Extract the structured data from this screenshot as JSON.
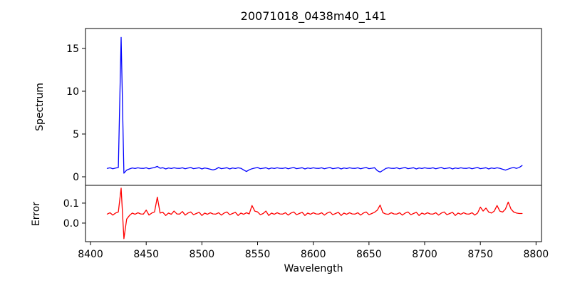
{
  "title": "20071018_0438m40_141",
  "chart_data": {
    "type": "line",
    "title": "20071018_0438m40_141",
    "xlabel": "Wavelength",
    "xlim": [
      8395.5,
      8804.9
    ],
    "x_ticks": [
      8400,
      8450,
      8500,
      8550,
      8600,
      8650,
      8700,
      8750,
      8800
    ],
    "grid": false,
    "legend": "none",
    "panels": [
      {
        "name": "spectrum",
        "ylabel": "Spectrum",
        "color": "#0000ff",
        "ylim": [
          -1.0,
          17.33
        ],
        "yticks": [
          0,
          5,
          10,
          15
        ],
        "ytick_labels": [
          "0",
          "5",
          "10",
          "15"
        ],
        "x_start": 8415,
        "x_step": 2.5,
        "values": [
          0.98,
          1.05,
          0.94,
          1.02,
          1.08,
          16.3,
          0.42,
          0.78,
          0.92,
          1.03,
          0.97,
          1.05,
          0.99,
          0.98,
          1.05,
          0.94,
          1.02,
          1.08,
          1.22,
          1.0,
          1.06,
          0.92,
          1.03,
          0.97,
          1.05,
          0.99,
          0.98,
          1.05,
          0.94,
          1.02,
          1.08,
          0.95,
          1.0,
          1.06,
          0.92,
          1.03,
          0.97,
          0.88,
          0.8,
          0.9,
          1.08,
          0.95,
          1.0,
          1.06,
          0.92,
          1.03,
          0.97,
          1.05,
          0.99,
          0.8,
          0.62,
          0.82,
          0.94,
          1.02,
          1.08,
          0.95,
          1.0,
          1.06,
          0.92,
          1.03,
          0.97,
          1.05,
          0.99,
          0.98,
          1.05,
          0.94,
          1.02,
          1.08,
          0.95,
          1.0,
          1.06,
          0.92,
          1.03,
          0.97,
          1.05,
          0.99,
          0.98,
          1.05,
          0.94,
          1.02,
          1.08,
          0.95,
          1.0,
          1.06,
          0.92,
          1.03,
          0.97,
          1.05,
          0.99,
          0.98,
          1.05,
          0.94,
          1.02,
          1.08,
          0.95,
          1.0,
          1.06,
          0.72,
          0.55,
          0.75,
          0.97,
          1.05,
          0.99,
          0.98,
          1.05,
          0.94,
          1.02,
          1.08,
          0.95,
          1.0,
          1.06,
          0.92,
          1.03,
          0.97,
          1.05,
          0.99,
          0.98,
          1.05,
          0.94,
          1.02,
          1.08,
          0.95,
          1.0,
          1.06,
          0.92,
          1.03,
          0.97,
          1.05,
          0.99,
          0.98,
          1.05,
          0.94,
          1.02,
          1.08,
          0.95,
          1.0,
          1.06,
          0.92,
          1.03,
          0.97,
          1.05,
          0.99,
          0.88,
          0.78,
          0.9,
          1.02,
          1.08,
          0.98,
          1.1,
          1.32
        ]
      },
      {
        "name": "error",
        "ylabel": "Error",
        "color": "#ff0000",
        "ylim": [
          -0.093,
          0.189
        ],
        "yticks": [
          0.0,
          0.1
        ],
        "ytick_labels": [
          "0.0",
          "0.1"
        ],
        "x_start": 8415,
        "x_step": 2.5,
        "values": [
          0.045,
          0.052,
          0.04,
          0.05,
          0.056,
          0.175,
          -0.078,
          0.02,
          0.038,
          0.05,
          0.044,
          0.052,
          0.046,
          0.045,
          0.065,
          0.04,
          0.05,
          0.056,
          0.13,
          0.05,
          0.054,
          0.038,
          0.05,
          0.044,
          0.06,
          0.046,
          0.045,
          0.058,
          0.04,
          0.05,
          0.056,
          0.042,
          0.048,
          0.054,
          0.038,
          0.05,
          0.044,
          0.052,
          0.046,
          0.045,
          0.052,
          0.04,
          0.05,
          0.056,
          0.042,
          0.048,
          0.054,
          0.038,
          0.05,
          0.044,
          0.052,
          0.046,
          0.088,
          0.06,
          0.056,
          0.042,
          0.048,
          0.06,
          0.038,
          0.05,
          0.044,
          0.052,
          0.046,
          0.045,
          0.052,
          0.04,
          0.05,
          0.056,
          0.042,
          0.048,
          0.054,
          0.038,
          0.05,
          0.044,
          0.052,
          0.046,
          0.045,
          0.052,
          0.04,
          0.05,
          0.056,
          0.042,
          0.048,
          0.054,
          0.038,
          0.05,
          0.044,
          0.052,
          0.046,
          0.045,
          0.052,
          0.04,
          0.05,
          0.056,
          0.042,
          0.048,
          0.054,
          0.065,
          0.09,
          0.052,
          0.046,
          0.044,
          0.052,
          0.046,
          0.045,
          0.052,
          0.04,
          0.05,
          0.056,
          0.042,
          0.048,
          0.054,
          0.038,
          0.05,
          0.044,
          0.052,
          0.046,
          0.045,
          0.052,
          0.04,
          0.05,
          0.056,
          0.042,
          0.048,
          0.054,
          0.038,
          0.05,
          0.044,
          0.052,
          0.046,
          0.045,
          0.052,
          0.04,
          0.05,
          0.08,
          0.06,
          0.075,
          0.055,
          0.05,
          0.06,
          0.088,
          0.06,
          0.055,
          0.07,
          0.105,
          0.07,
          0.055,
          0.05,
          0.048,
          0.048
        ]
      }
    ]
  }
}
